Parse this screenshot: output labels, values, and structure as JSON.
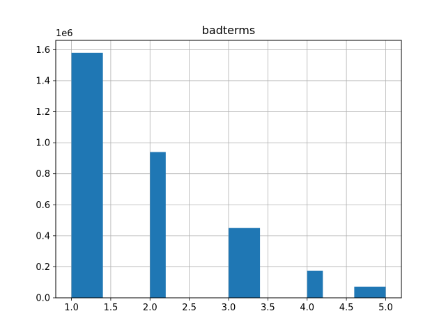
{
  "chart_data": {
    "type": "bar",
    "title": "badterms",
    "xlabel": "",
    "ylabel": "",
    "y_offset_label": "1e6",
    "grid": true,
    "xlim": [
      0.8,
      5.2
    ],
    "ylim": [
      0,
      1.66
    ],
    "x_ticks": [
      "1.0",
      "1.5",
      "2.0",
      "2.5",
      "3.0",
      "3.5",
      "4.0",
      "4.5",
      "5.0"
    ],
    "y_ticks": [
      "0.0",
      "0.2",
      "0.4",
      "0.6",
      "0.8",
      "1.0",
      "1.2",
      "1.4",
      "1.6"
    ],
    "bars": [
      {
        "x0": 1.0,
        "x1": 1.4,
        "value": 1.58
      },
      {
        "x0": 2.0,
        "x1": 2.2,
        "value": 0.94
      },
      {
        "x0": 3.0,
        "x1": 3.4,
        "value": 0.45
      },
      {
        "x0": 4.0,
        "x1": 4.2,
        "value": 0.175
      },
      {
        "x0": 4.6,
        "x1": 5.0,
        "value": 0.072
      }
    ],
    "bar_color": "#1f77b4",
    "grid_color": "#b0b0b0"
  }
}
